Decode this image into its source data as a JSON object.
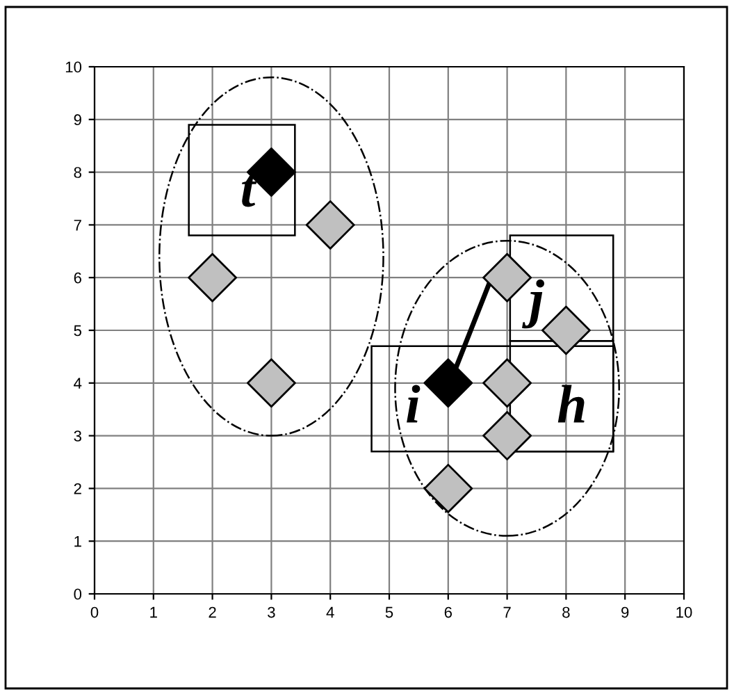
{
  "chart_data": {
    "type": "scatter",
    "xlim": [
      0,
      10
    ],
    "ylim": [
      0,
      10
    ],
    "xticks": [
      0,
      1,
      2,
      3,
      4,
      5,
      6,
      7,
      8,
      9,
      10
    ],
    "yticks": [
      0,
      1,
      2,
      3,
      4,
      5,
      6,
      7,
      8,
      9,
      10
    ],
    "grid": true,
    "legend": false,
    "series": [
      {
        "color": "#c0c0c0",
        "marker": "diamond",
        "x": [
          2,
          4,
          3,
          7,
          8,
          7,
          7,
          6
        ],
        "values": [
          6,
          7,
          4,
          6,
          5,
          4,
          3,
          2
        ]
      },
      {
        "color": "#000000",
        "marker": "diamond",
        "x": [
          3,
          6
        ],
        "values": [
          8,
          4
        ]
      },
      {
        "type": "line",
        "marker": "none",
        "color": "#000000",
        "x": [
          6.1,
          6.7
        ],
        "values": [
          4.2,
          5.9
        ]
      }
    ],
    "annotations": [
      "t",
      "i",
      "j",
      "h"
    ]
  }
}
